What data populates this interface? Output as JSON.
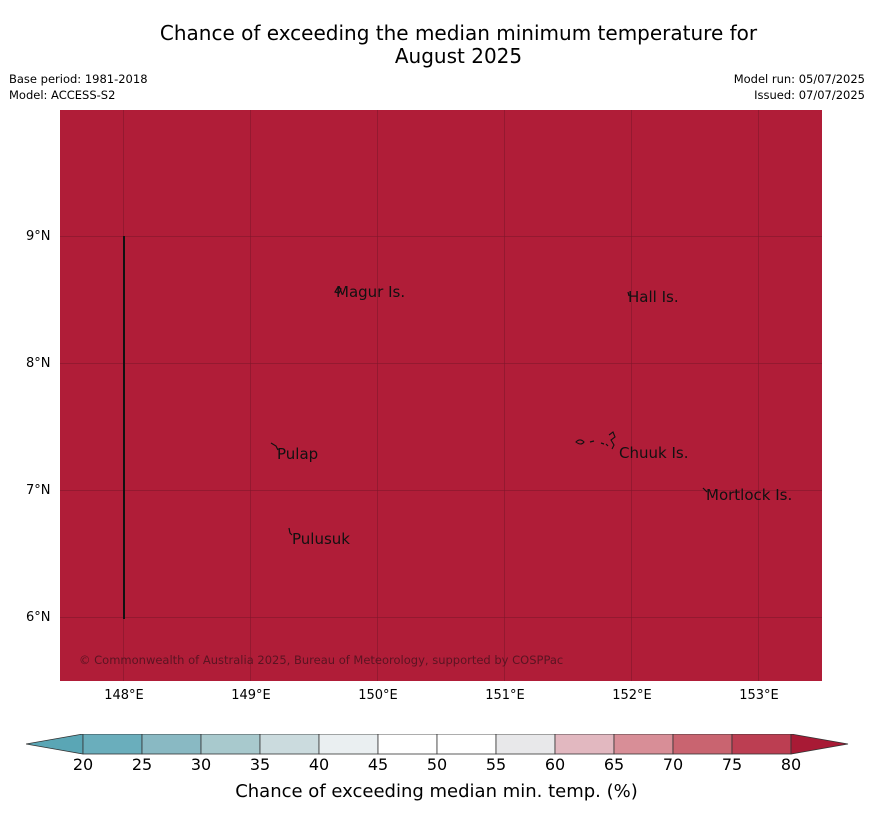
{
  "title_line1": "Chance of exceeding the median minimum temperature for",
  "title_line2": "August 2025",
  "meta": {
    "base_period": "Base period: 1981-2018",
    "model": "Model: ACCESS-S2",
    "model_run": "Model run: 05/07/2025",
    "issued": "Issued: 07/07/2025"
  },
  "map": {
    "fill_color": "#b01d38",
    "fill_value_category": "80+",
    "lat_ticks": [
      "9°N",
      "8°N",
      "7°N",
      "6°N"
    ],
    "lon_ticks": [
      "148°E",
      "149°E",
      "150°E",
      "151°E",
      "152°E",
      "153°E"
    ],
    "places": [
      {
        "name": "Magur Is."
      },
      {
        "name": "Hall Is."
      },
      {
        "name": "Pulap"
      },
      {
        "name": "Chuuk Is."
      },
      {
        "name": "Mortlock Is."
      },
      {
        "name": "Pulusuk"
      }
    ],
    "copyright": "© Commonwealth of Australia 2025, Bureau of Meteorology, supported by COSPPac"
  },
  "colorbar": {
    "label": "Chance of exceeding median min. temp. (%)",
    "ticks": [
      "20",
      "25",
      "30",
      "35",
      "40",
      "45",
      "50",
      "55",
      "60",
      "65",
      "70",
      "75",
      "80"
    ],
    "colors": [
      "#5aa6b5",
      "#6aaebc",
      "#89b9c3",
      "#a8c9cd",
      "#cbdbde",
      "#eaeff1",
      "#ffffff",
      "#ffffff",
      "#e8e8ea",
      "#e2b8c0",
      "#d88e97",
      "#c96470",
      "#bc3e52",
      "#a81a35"
    ]
  }
}
